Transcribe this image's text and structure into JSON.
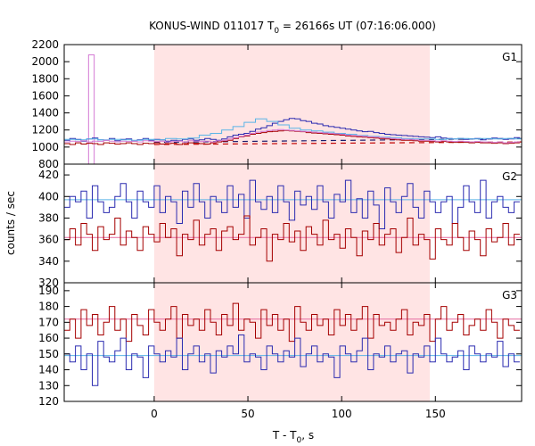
{
  "chart_data": {
    "type": "line",
    "title": {
      "prefix": "KONUS-WIND 011017 T",
      "sub": "0",
      "suffix": " = 26166s UT (07:16:06.000)"
    },
    "ylabel": "counts / sec",
    "xlabel": {
      "prefix": "T - T",
      "sub": "0",
      "suffix": ", s"
    },
    "xlim": [
      -48,
      196
    ],
    "xticks": [
      0,
      50,
      100,
      150
    ],
    "shaded_interval": [
      0,
      147
    ],
    "colors": {
      "shade": "#ffe4e4",
      "blue": "#2b2bb0",
      "red": "#a50000",
      "cyan": "#5ab4e6",
      "pink": "#e66aa0",
      "violet": "#d47ad4",
      "dashed_dark": "#1a1a6a",
      "dashed_red": "#c00000"
    },
    "panels": [
      {
        "name": "G1",
        "ylim": [
          800,
          2200
        ],
        "yticks": [
          800,
          1000,
          1200,
          1400,
          1600,
          1800,
          2000,
          2200
        ],
        "spike": {
          "x": -35,
          "width": 3,
          "value": 2080
        },
        "series": [
          {
            "color": "blue",
            "bin": 3,
            "values": [
              1080,
              1100,
              1090,
              1070,
              1095,
              1105,
              1085,
              1080,
              1100,
              1075,
              1090,
              1095,
              1070,
              1085,
              1100,
              1080,
              1090,
              1085,
              1070,
              1080,
              1075,
              1090,
              1095,
              1080,
              1085,
              1100,
              1090,
              1080,
              1095,
              1120,
              1140,
              1150,
              1160,
              1185,
              1210,
              1225,
              1250,
              1280,
              1300,
              1320,
              1335,
              1330,
              1310,
              1300,
              1280,
              1270,
              1250,
              1240,
              1230,
              1220,
              1210,
              1200,
              1190,
              1180,
              1185,
              1170,
              1160,
              1150,
              1145,
              1140,
              1135,
              1130,
              1125,
              1120,
              1115,
              1110,
              1120,
              1105,
              1100,
              1095,
              1100,
              1090,
              1095,
              1100,
              1085,
              1095,
              1105,
              1100,
              1090,
              1095,
              1110
            ]
          },
          {
            "color": "cyan",
            "bin": 6,
            "values": [
              1090,
              1085,
              1095,
              1085,
              1090,
              1085,
              1080,
              1090,
              1085,
              1100,
              1095,
              1105,
              1140,
              1160,
              1200,
              1240,
              1290,
              1330,
              1300,
              1260,
              1220,
              1200,
              1190,
              1175,
              1160,
              1150,
              1135,
              1125,
              1115,
              1110,
              1100,
              1095,
              1095,
              1090,
              1095,
              1100,
              1095,
              1100,
              1095,
              1100,
              1095
            ]
          },
          {
            "color": "red",
            "bin": 3,
            "values": [
              1040,
              1030,
              1050,
              1035,
              1045,
              1040,
              1030,
              1050,
              1045,
              1035,
              1040,
              1050,
              1040,
              1030,
              1045,
              1040,
              1050,
              1035,
              1040,
              1045,
              1030,
              1040,
              1050,
              1045,
              1040,
              1035,
              1050,
              1060,
              1070,
              1080,
              1100,
              1120,
              1130,
              1150,
              1160,
              1170,
              1180,
              1185,
              1190,
              1195,
              1190,
              1185,
              1180,
              1170,
              1165,
              1160,
              1155,
              1150,
              1145,
              1140,
              1130,
              1125,
              1120,
              1115,
              1110,
              1105,
              1100,
              1095,
              1090,
              1085,
              1080,
              1080,
              1075,
              1070,
              1070,
              1065,
              1060,
              1065,
              1060,
              1055,
              1060,
              1055,
              1050,
              1055,
              1050,
              1050,
              1045,
              1050,
              1040,
              1045,
              1050
            ]
          },
          {
            "color": "violet",
            "bin": 3,
            "values": [
              1060,
              1070,
              1065,
              1075,
              1060,
              1070,
              1065,
              1080,
              1070,
              1060,
              1070,
              1065,
              1070,
              1060,
              1075,
              1070,
              1065,
              1070,
              1060,
              1065,
              1070,
              1060,
              1075,
              1070,
              1065,
              1070,
              1060,
              1075,
              1080,
              1095,
              1110,
              1125,
              1140,
              1160,
              1175,
              1185,
              1195,
              1200,
              1205,
              1200,
              1195,
              1190,
              1185,
              1180,
              1175,
              1170,
              1165,
              1160,
              1155,
              1150,
              1140,
              1135,
              1130,
              1125,
              1120,
              1115,
              1110,
              1105,
              1100,
              1095,
              1090,
              1090,
              1085,
              1080,
              1080,
              1075,
              1070,
              1075,
              1070,
              1065,
              1070,
              1065,
              1060,
              1065,
              1060,
              1060,
              1055,
              1060,
              1050,
              1055,
              1060
            ]
          }
        ],
        "dashed": [
          {
            "color": "dashed_dark",
            "from": [
              0,
              1055
            ],
            "to": [
              196,
              1100
            ]
          },
          {
            "color": "dashed_red",
            "from": [
              0,
              1030
            ],
            "to": [
              196,
              1060
            ]
          }
        ]
      },
      {
        "name": "G2",
        "ylim": [
          320,
          430
        ],
        "yticks": [
          320,
          340,
          360,
          380,
          400,
          420
        ],
        "series": [
          {
            "color": "blue",
            "bin": 3,
            "values": [
              390,
              400,
              395,
              405,
              380,
              410,
              395,
              385,
              390,
              400,
              412,
              395,
              380,
              405,
              395,
              390,
              410,
              385,
              400,
              395,
              375,
              405,
              390,
              412,
              395,
              380,
              400,
              395,
              385,
              410,
              390,
              402,
              380,
              415,
              395,
              388,
              400,
              385,
              410,
              395,
              378,
              405,
              392,
              400,
              388,
              410,
              395,
              380,
              402,
              395,
              415,
              385,
              398,
              380,
              405,
              392,
              370,
              408,
              395,
              385,
              400,
              412,
              390,
              380,
              405,
              395,
              385,
              395,
              400,
              375,
              390,
              410,
              395,
              385,
              415,
              380,
              395,
              400,
              390,
              385,
              395
            ]
          },
          {
            "color": "red",
            "bin": 3,
            "values": [
              360,
              370,
              355,
              375,
              365,
              350,
              372,
              360,
              365,
              380,
              355,
              368,
              362,
              350,
              372,
              365,
              358,
              375,
              362,
              370,
              345,
              365,
              360,
              378,
              355,
              365,
              370,
              350,
              368,
              372,
              360,
              365,
              382,
              355,
              362,
              370,
              340,
              365,
              360,
              375,
              358,
              368,
              350,
              372,
              365,
              355,
              378,
              360,
              365,
              352,
              370,
              362,
              345,
              368,
              360,
              375,
              355,
              365,
              370,
              348,
              362,
              380,
              355,
              365,
              360,
              342,
              370,
              360,
              355,
              375,
              362,
              350,
              368,
              360,
              345,
              370,
              358,
              362,
              375,
              355,
              365
            ]
          }
        ],
        "levels": [
          {
            "color": "cyan",
            "value": 397
          },
          {
            "color": "pink",
            "value": 362
          }
        ]
      },
      {
        "name": "G3",
        "ylim": [
          120,
          195
        ],
        "yticks": [
          120,
          130,
          140,
          150,
          160,
          170,
          180,
          190
        ],
        "series": [
          {
            "color": "red",
            "bin": 3,
            "values": [
              165,
              172,
              160,
              178,
              168,
              175,
              162,
              170,
              180,
              165,
              172,
              158,
              175,
              168,
              162,
              178,
              170,
              165,
              172,
              180,
              160,
              175,
              168,
              172,
              165,
              178,
              170,
              162,
              175,
              168,
              182,
              165,
              172,
              170,
              160,
              178,
              168,
              175,
              165,
              172,
              158,
              180,
              170,
              165,
              175,
              168,
              172,
              162,
              178,
              168,
              175,
              165,
              172,
              180,
              160,
              175,
              168,
              170,
              165,
              172,
              178,
              162,
              170,
              168,
              175,
              158,
              172,
              180,
              165,
              170,
              175,
              162,
              168,
              172,
              165,
              178,
              170,
              160,
              172,
              168,
              165
            ]
          },
          {
            "color": "blue",
            "bin": 3,
            "values": [
              150,
              145,
              155,
              140,
              150,
              130,
              158,
              148,
              145,
              152,
              160,
              140,
              150,
              148,
              135,
              155,
              150,
              145,
              152,
              148,
              160,
              140,
              150,
              155,
              145,
              150,
              138,
              152,
              148,
              155,
              150,
              162,
              145,
              150,
              148,
              140,
              155,
              150,
              145,
              152,
              148,
              160,
              142,
              150,
              155,
              145,
              150,
              148,
              135,
              155,
              150,
              145,
              152,
              160,
              140,
              150,
              148,
              155,
              145,
              150,
              152,
              138,
              150,
              148,
              155,
              145,
              160,
              150,
              145,
              148,
              152,
              140,
              155,
              150,
              145,
              150,
              148,
              158,
              142,
              150,
              145
            ]
          }
        ],
        "levels": [
          {
            "color": "pink",
            "value": 172
          },
          {
            "color": "cyan",
            "value": 149
          }
        ]
      }
    ]
  }
}
